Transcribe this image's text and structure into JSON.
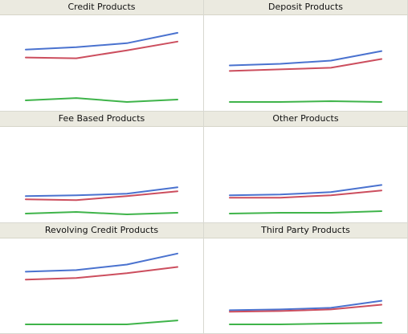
{
  "chart_data": [
    {
      "type": "line",
      "title": "Credit Products",
      "x": [
        1,
        2,
        3,
        4
      ],
      "ylim": [
        0,
        100
      ],
      "series": [
        {
          "color": "#4a72cf",
          "values": [
            67,
            70,
            75,
            88
          ]
        },
        {
          "color": "#cc4e5e",
          "values": [
            57,
            56,
            66,
            77
          ]
        },
        {
          "color": "#3fb44a",
          "values": [
            3,
            6,
            1,
            4
          ]
        }
      ]
    },
    {
      "type": "line",
      "title": "Deposit Products",
      "x": [
        1,
        2,
        3,
        4
      ],
      "ylim": [
        0,
        100
      ],
      "series": [
        {
          "color": "#4a72cf",
          "values": [
            47,
            49,
            53,
            65
          ]
        },
        {
          "color": "#cc4e5e",
          "values": [
            40,
            42,
            44,
            55
          ]
        },
        {
          "color": "#3fb44a",
          "values": [
            1,
            1,
            2,
            1
          ]
        }
      ]
    },
    {
      "type": "line",
      "title": "Fee Based Products",
      "x": [
        1,
        2,
        3,
        4
      ],
      "ylim": [
        0,
        100
      ],
      "series": [
        {
          "color": "#4a72cf",
          "values": [
            23,
            24,
            26,
            34
          ]
        },
        {
          "color": "#cc4e5e",
          "values": [
            19,
            18,
            23,
            29
          ]
        },
        {
          "color": "#3fb44a",
          "values": [
            1,
            3,
            0,
            2
          ]
        }
      ]
    },
    {
      "type": "line",
      "title": "Other Products",
      "x": [
        1,
        2,
        3,
        4
      ],
      "ylim": [
        0,
        100
      ],
      "series": [
        {
          "color": "#4a72cf",
          "values": [
            24,
            25,
            28,
            37
          ]
        },
        {
          "color": "#cc4e5e",
          "values": [
            21,
            21,
            24,
            30
          ]
        },
        {
          "color": "#3fb44a",
          "values": [
            1,
            2,
            2,
            4
          ]
        }
      ]
    },
    {
      "type": "line",
      "title": "Revolving Credit Products",
      "x": [
        1,
        2,
        3,
        4
      ],
      "ylim": [
        0,
        100
      ],
      "series": [
        {
          "color": "#4a72cf",
          "values": [
            68,
            70,
            77,
            91
          ]
        },
        {
          "color": "#cc4e5e",
          "values": [
            58,
            60,
            66,
            74
          ]
        },
        {
          "color": "#3fb44a",
          "values": [
            1,
            1,
            1,
            6
          ]
        }
      ]
    },
    {
      "type": "line",
      "title": "Third Party Products",
      "x": [
        1,
        2,
        3,
        4
      ],
      "ylim": [
        0,
        100
      ],
      "series": [
        {
          "color": "#4a72cf",
          "values": [
            19,
            20,
            22,
            31
          ]
        },
        {
          "color": "#cc4e5e",
          "values": [
            17,
            18,
            20,
            26
          ]
        },
        {
          "color": "#3fb44a",
          "values": [
            1,
            1,
            2,
            3
          ]
        }
      ]
    }
  ]
}
